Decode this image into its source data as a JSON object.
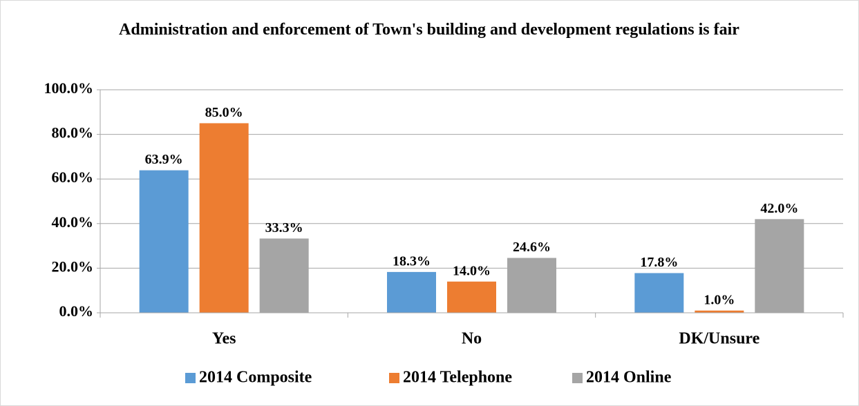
{
  "chart_data": {
    "type": "bar",
    "title": "Administration and enforcement of Town's building and development regulations is fair",
    "categories": [
      "Yes",
      "No",
      "DK/Unsure"
    ],
    "series": [
      {
        "name": "2014 Composite",
        "color": "#5b9bd5",
        "values": [
          63.9,
          18.3,
          17.8
        ],
        "value_labels": [
          "63.9%",
          "18.3%",
          "17.8%"
        ]
      },
      {
        "name": "2014 Telephone",
        "color": "#ed7d31",
        "values": [
          85.0,
          14.0,
          1.0
        ],
        "value_labels": [
          "85.0%",
          "14.0%",
          "1.0%"
        ]
      },
      {
        "name": "2014 Online",
        "color": "#a5a5a5",
        "values": [
          33.3,
          24.6,
          42.0
        ],
        "value_labels": [
          "33.3%",
          "24.6%",
          "42.0%"
        ]
      }
    ],
    "ylim": [
      0,
      100
    ],
    "yticks": [
      {
        "value": 0,
        "label": "0.0%"
      },
      {
        "value": 20,
        "label": "20.0%"
      },
      {
        "value": 40,
        "label": "40.0%"
      },
      {
        "value": 60,
        "label": "60.0%"
      },
      {
        "value": 80,
        "label": "80.0%"
      },
      {
        "value": 100,
        "label": "100.0%"
      }
    ],
    "grid": true,
    "legend": "bottom"
  }
}
